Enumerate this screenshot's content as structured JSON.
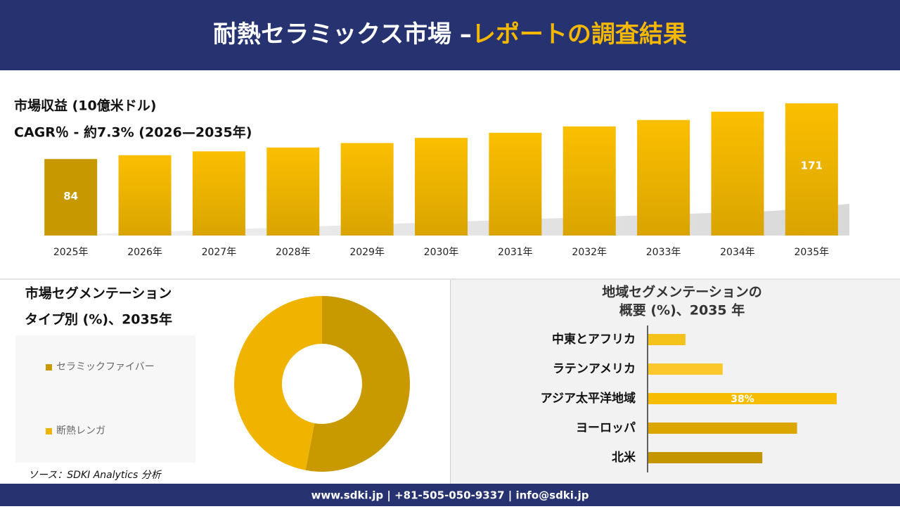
{
  "header": {
    "title": "耐熱セラミックス市場 –",
    "title_highlight": "レポートの調査結果"
  },
  "chart_data": [
    {
      "type": "bar",
      "title": "市場収益 (10億米ドル)",
      "subtitle": "CAGR％ - 約7.3% (2026—2035年)",
      "categories": [
        "2025年",
        "2026年",
        "2027年",
        "2028年",
        "2029年",
        "2030年",
        "2031年",
        "2032年",
        "2033年",
        "2034年",
        "2035年"
      ],
      "values": [
        84,
        90,
        96,
        102,
        109,
        117,
        125,
        135,
        145,
        158,
        171
      ],
      "color": "#f2b900",
      "ylim": [
        37,
        171
      ]
    },
    {
      "type": "donut",
      "title": "市場セグメンテーション",
      "subtitle": "タイプ別 (%)、2035年",
      "categories": [
        "セラミックファイバー",
        "断熱レンガ"
      ],
      "values": [
        53,
        47
      ],
      "colors": [
        "#c89a00",
        "#f0b400"
      ]
    },
    {
      "type": "hbar",
      "title": "地域セグメンテーションの",
      "subtitle": "概要 (%)、2035 年",
      "categories": [
        "中東とアフリカ",
        "ラテンアメリカ",
        "アジア太平洋地域",
        "ヨーロッパ",
        "北米"
      ],
      "values": [
        7.5,
        15,
        38,
        30,
        23
      ],
      "value_labels": [
        null,
        null,
        "38%",
        null,
        null
      ],
      "colors": [
        "#f5c21c",
        "#fcc72a",
        "#f6bd00",
        "#dba600",
        "#c49500"
      ],
      "xlim": [
        0,
        38
      ]
    }
  ],
  "source": "ソース：SDKI Analytics 分析",
  "footer": "www.sdki.jp | +81-505-050-9337 | info@sdki.jp"
}
